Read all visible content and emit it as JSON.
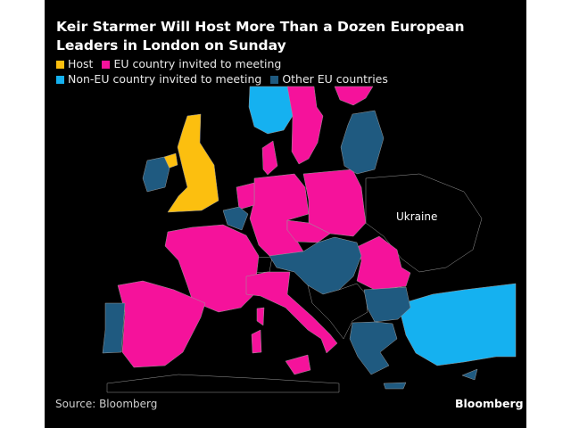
{
  "title": "Keir Starmer Will Host More Than a Dozen European Leaders in London on Sunday",
  "legend": [
    {
      "label": "Host",
      "color": "#fcbf0f"
    },
    {
      "label": "EU country invited to meeting",
      "color": "#f5129b"
    },
    {
      "label": "Non-EU country invited to meeting",
      "color": "#15b1f0"
    },
    {
      "label": "Other EU countries",
      "color": "#1f5a80"
    }
  ],
  "map_labels": {
    "ukraine": "Ukraine"
  },
  "countries": {
    "host": [
      "United Kingdom"
    ],
    "eu_invited": [
      "Sweden",
      "Finland",
      "Denmark",
      "Germany",
      "Netherlands",
      "Poland",
      "Czech Republic",
      "France",
      "Italy",
      "Spain",
      "Romania"
    ],
    "non_eu_invited": [
      "Norway",
      "Turkey"
    ],
    "other_eu": [
      "Ireland",
      "Estonia",
      "Latvia",
      "Lithuania",
      "Belgium",
      "Austria",
      "Slovakia",
      "Hungary",
      "Slovenia",
      "Croatia",
      "Bulgaria",
      "Greece",
      "Portugal",
      "Cyprus"
    ]
  },
  "source": "Source: Bloomberg",
  "brand": "Bloomberg"
}
